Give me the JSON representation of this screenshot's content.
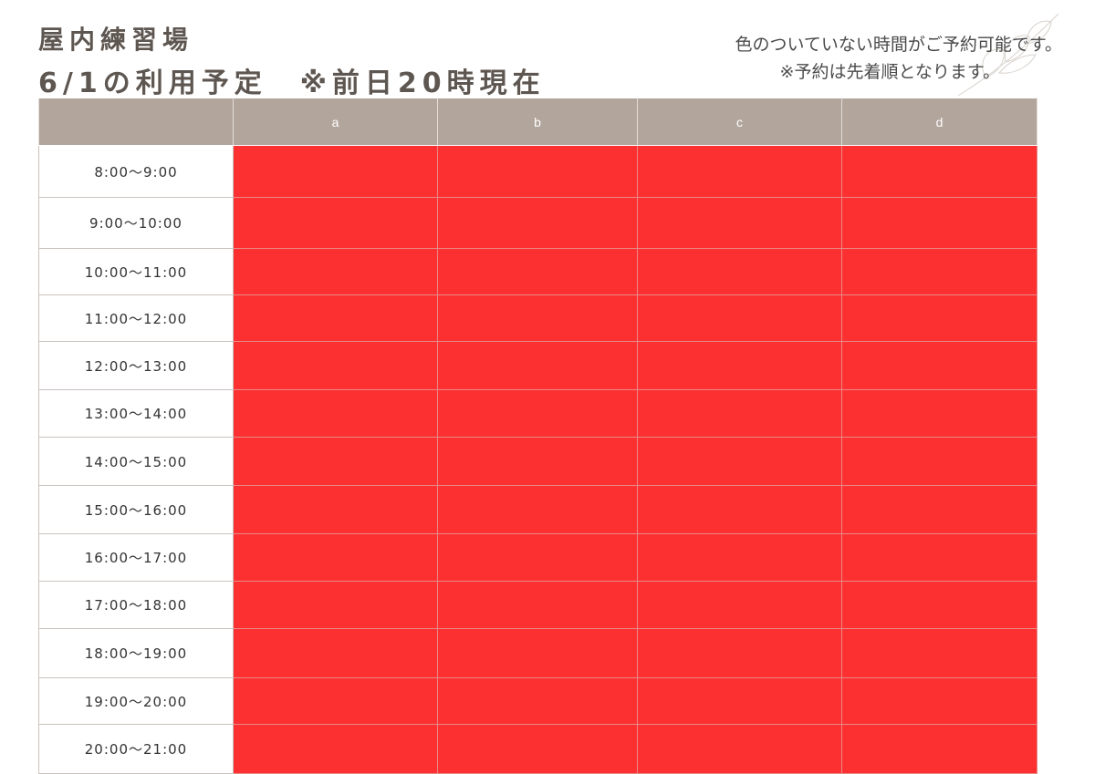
{
  "header": {
    "title_line1": "屋内練習場",
    "title_line2": "6/1の利用予定　※前日20時現在"
  },
  "notice": {
    "line1": "色のついていない時間がご予約可能です。",
    "line2": "※予約は先着順となります。"
  },
  "colors": {
    "header_bg": "#b1a59c",
    "booked": "#fc3030",
    "title_text": "#5e5650"
  },
  "table": {
    "columns": [
      "a",
      "b",
      "c",
      "d"
    ],
    "rows": [
      {
        "time": "8:00〜9:00",
        "booked": [
          true,
          true,
          true,
          true
        ]
      },
      {
        "time": "9:00〜10:00",
        "booked": [
          true,
          true,
          true,
          true
        ]
      },
      {
        "time": "10:00〜11:00",
        "booked": [
          true,
          true,
          true,
          true
        ]
      },
      {
        "time": "11:00〜12:00",
        "booked": [
          true,
          true,
          true,
          true
        ]
      },
      {
        "time": "12:00〜13:00",
        "booked": [
          true,
          true,
          true,
          true
        ]
      },
      {
        "time": "13:00〜14:00",
        "booked": [
          true,
          true,
          true,
          true
        ]
      },
      {
        "time": "14:00〜15:00",
        "booked": [
          true,
          true,
          true,
          true
        ]
      },
      {
        "time": "15:00〜16:00",
        "booked": [
          true,
          true,
          true,
          true
        ]
      },
      {
        "time": "16:00〜17:00",
        "booked": [
          true,
          true,
          true,
          true
        ]
      },
      {
        "time": "17:00〜18:00",
        "booked": [
          true,
          true,
          true,
          true
        ]
      },
      {
        "time": "18:00〜19:00",
        "booked": [
          true,
          true,
          true,
          true
        ]
      },
      {
        "time": "19:00〜20:00",
        "booked": [
          true,
          true,
          true,
          true
        ]
      },
      {
        "time": "20:00〜21:00",
        "booked": [
          true,
          true,
          true,
          true
        ]
      }
    ]
  }
}
